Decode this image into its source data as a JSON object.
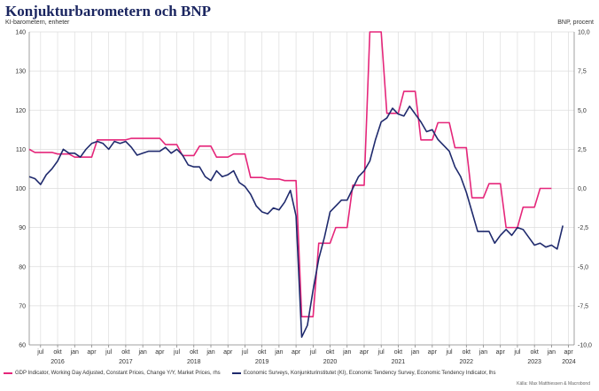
{
  "chart_data": {
    "type": "line",
    "title": "Konjukturbarometern och BNP",
    "left_axis_label": "KI-barometern, enheter",
    "right_axis_label": "BNP, procent",
    "ylim_left": [
      60,
      140
    ],
    "yticks_left": [
      "60",
      "70",
      "80",
      "90",
      "100",
      "110",
      "120",
      "130",
      "140"
    ],
    "ylim_right": [
      -10,
      10
    ],
    "yticks_right": [
      "-10,0",
      "-7,5",
      "-5,0",
      "-2,5",
      "0,0",
      "2,5",
      "5,0",
      "7,5",
      "10,0"
    ],
    "x_start_month": "2016-05",
    "x_months_count": 97,
    "x_tick_labels": [
      "jul",
      "okt",
      "jan",
      "apr",
      "jul",
      "okt",
      "jan",
      "apr",
      "jul",
      "okt",
      "jan",
      "apr",
      "jul",
      "okt",
      "jan",
      "apr",
      "jul",
      "okt",
      "jan",
      "apr",
      "jul",
      "okt",
      "jan",
      "apr",
      "jul",
      "okt",
      "jan",
      "apr",
      "jul",
      "okt",
      "jan",
      "apr"
    ],
    "x_year_labels": [
      "2016",
      "2017",
      "2018",
      "2019",
      "2020",
      "2021",
      "2022",
      "2023",
      "2024"
    ],
    "grid": true,
    "legend_position": "bottom",
    "source": "Källa: Max Matthiessen & Macrobond",
    "colors": {
      "gdp": "#e5267a",
      "ki": "#1f2a6d",
      "grid": "#dddddd"
    },
    "series": [
      {
        "name": "GDP Indicator, Working Day Adjusted, Constant Prices, Change Y/Y, Market Prices, rhs",
        "axis": "right",
        "values": [
          2.5,
          2.3,
          2.3,
          2.3,
          2.3,
          2.2,
          2.2,
          2.2,
          2.0,
          2.0,
          2.0,
          2.0,
          3.1,
          3.1,
          3.1,
          3.1,
          3.1,
          3.1,
          3.2,
          3.2,
          3.2,
          3.2,
          3.2,
          3.2,
          2.8,
          2.8,
          2.8,
          2.1,
          2.1,
          2.1,
          2.7,
          2.7,
          2.7,
          2.0,
          2.0,
          2.0,
          2.2,
          2.2,
          2.2,
          0.7,
          0.7,
          0.7,
          0.6,
          0.6,
          0.6,
          0.5,
          0.5,
          0.5,
          -8.2,
          -8.2,
          -8.2,
          -3.5,
          -3.5,
          -3.5,
          -2.5,
          -2.5,
          -2.5,
          0.2,
          0.2,
          0.2,
          10.0,
          10.0,
          10.0,
          4.8,
          4.8,
          4.8,
          6.2,
          6.2,
          6.2,
          3.1,
          3.1,
          3.1,
          4.2,
          4.2,
          4.2,
          2.6,
          2.6,
          2.6,
          -0.6,
          -0.6,
          -0.6,
          0.3,
          0.3,
          0.3,
          -2.5,
          -2.5,
          -2.5,
          -1.2,
          -1.2,
          -1.2,
          0.0,
          0.0,
          0.0
        ]
      },
      {
        "name": "Economic Surveys, Konjunkturinstitutet (KI), Economic Tendency Survey, Economic Tendency Indicator, lhs",
        "axis": "left",
        "values": [
          103,
          102.5,
          101,
          103.5,
          105,
          107,
          110,
          109,
          109,
          108,
          110,
          111.5,
          112,
          111.5,
          110,
          112,
          111.5,
          112,
          110.5,
          108.5,
          109,
          109.5,
          109.5,
          109.5,
          110.5,
          109,
          110,
          108.5,
          106,
          105.5,
          105.5,
          103,
          102,
          104.5,
          103,
          103.5,
          104.5,
          101.5,
          100.5,
          98.5,
          95.5,
          94,
          93.5,
          95,
          94.5,
          96.5,
          99.5,
          93,
          62,
          65,
          74,
          82,
          87.5,
          94,
          95.5,
          97,
          97,
          100,
          103,
          104.5,
          107,
          112.5,
          117,
          118,
          120.5,
          119,
          118.5,
          121,
          119,
          117,
          114.5,
          115,
          112.5,
          111,
          109.5,
          105.5,
          103,
          99,
          94,
          89,
          89,
          89,
          86,
          88,
          89.5,
          88,
          90,
          89.5,
          87.5,
          85.5,
          86,
          85,
          85.5,
          84.5,
          90.5
        ]
      }
    ]
  }
}
